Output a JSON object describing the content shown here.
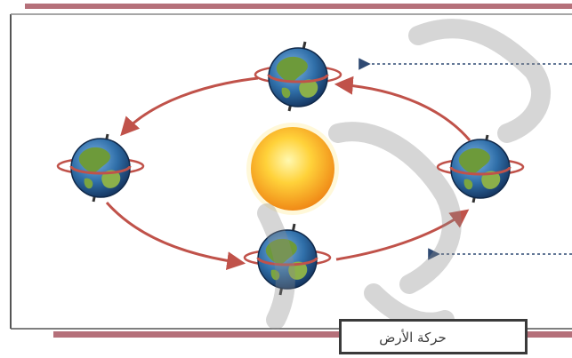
{
  "diagram": {
    "center_body": "sun",
    "orbiting_body": "earth",
    "earth_positions": 4,
    "orbit_direction": "counterclockwise",
    "colors": {
      "frame_border": "#555555",
      "top_bar": "#b5707a",
      "orbit_arrow": "#c0524a",
      "pointer_arrow": "#2f4a73",
      "sun_core": "#ffd23a",
      "sun_edge": "#f08a17",
      "ocean": "#2f6ea8",
      "land": "#6d9a3a"
    }
  },
  "caption": {
    "text": "حركة الأرض"
  },
  "watermark": {
    "present": true,
    "style": "large faint gray arabic calligraphy"
  }
}
